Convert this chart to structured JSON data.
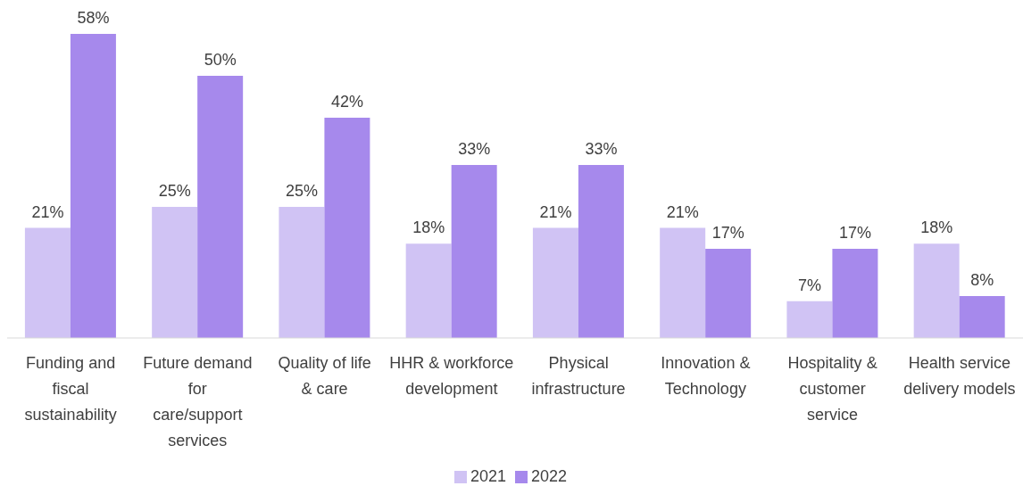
{
  "chart_data": {
    "type": "bar",
    "categories": [
      "Funding and fiscal sustainability",
      "Future demand for care/support services",
      "Quality of life & care",
      "HHR & workforce development",
      "Physical infrastructure",
      "Innovation & Technology",
      "Hospitality & customer service",
      "Health service delivery models"
    ],
    "series": [
      {
        "name": "2021",
        "color": "#d0c3f4",
        "values": [
          21,
          25,
          25,
          18,
          21,
          21,
          7,
          18
        ],
        "value_labels": [
          "21%",
          "25%",
          "25%",
          "18%",
          "21%",
          "21%",
          "7%",
          "18%"
        ]
      },
      {
        "name": "2022",
        "color": "#a689ec",
        "values": [
          58,
          50,
          42,
          33,
          33,
          17,
          17,
          8
        ],
        "value_labels": [
          "58%",
          "50%",
          "42%",
          "33%",
          "33%",
          "17%",
          "17%",
          "8%"
        ]
      }
    ],
    "tick_labels": "x",
    "legend": "bottom"
  }
}
